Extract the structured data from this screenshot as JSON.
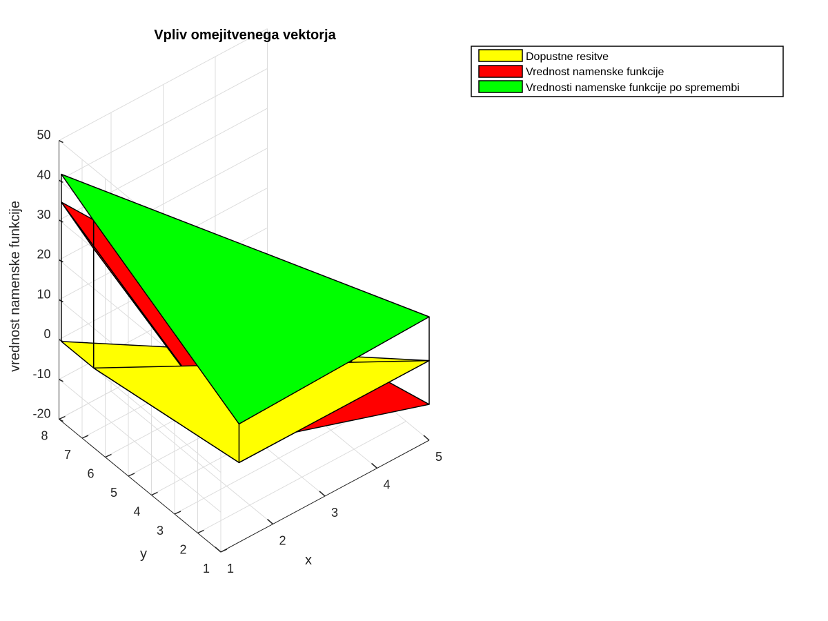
{
  "chart_data": {
    "type": "surface3d",
    "title": "Vpliv omejitvenega vektorja",
    "xlabel": "x",
    "ylabel": "y",
    "zlabel": "vrednost namenske funkcije",
    "xlim": [
      1,
      5
    ],
    "ylim": [
      1,
      8
    ],
    "zlim": [
      -20,
      50
    ],
    "x_ticks": [
      1,
      2,
      3,
      4,
      5
    ],
    "y_ticks": [
      1,
      2,
      3,
      4,
      5,
      6,
      7,
      8
    ],
    "z_ticks": [
      -20,
      -10,
      0,
      10,
      20,
      30,
      40,
      50
    ],
    "grid": true,
    "legend_position": "top-right, outside",
    "series": [
      {
        "name": "Dopustne resitve",
        "color": "#ffff00",
        "vertices": [
          [
            1.35,
            1.0,
            0
          ],
          [
            5.0,
            1.0,
            0
          ],
          [
            1.0,
            7.9,
            0
          ],
          [
            1.0,
            6.5,
            0
          ]
        ]
      },
      {
        "name": "Vrednost namenske funkcije",
        "color": "#ff0000",
        "vertices": [
          [
            1.35,
            1.0,
            4.7
          ],
          [
            5.0,
            1.0,
            -11
          ],
          [
            1.0,
            7.9,
            35
          ],
          [
            1.0,
            6.5,
            30
          ]
        ]
      },
      {
        "name": "Vrednosti namenske funkcije po spremembi",
        "color": "#00ff00",
        "vertices": [
          [
            1.35,
            1.0,
            9.7
          ],
          [
            5.0,
            1.0,
            11
          ],
          [
            1.0,
            7.9,
            42
          ],
          [
            1.0,
            6.5,
            37
          ]
        ]
      }
    ]
  }
}
